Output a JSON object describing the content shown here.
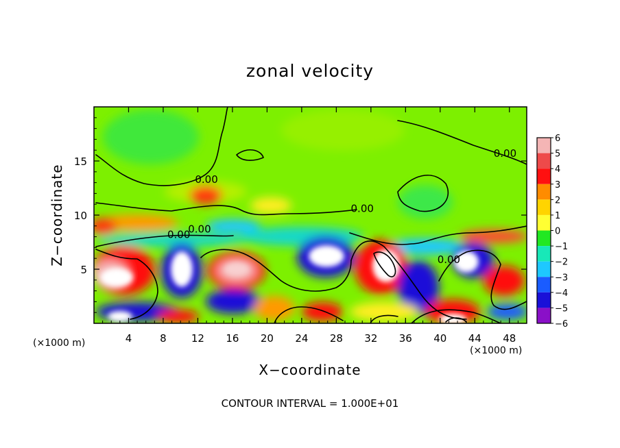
{
  "chart_data": {
    "type": "heatmap",
    "title": "zonal velocity",
    "xlabel": "X−coordinate",
    "ylabel": "Z−coordinate",
    "x_unit_left": "(×1000 m)",
    "x_unit_right": "(×1000 m)",
    "xlim": [
      0,
      50
    ],
    "ylim": [
      0,
      20
    ],
    "x_ticks": [
      4,
      8,
      12,
      16,
      20,
      24,
      28,
      32,
      36,
      40,
      44,
      48
    ],
    "y_ticks": [
      5,
      10,
      15
    ],
    "colorbar": {
      "ticks": [
        6,
        5,
        4,
        3,
        2,
        1,
        0,
        -1,
        -2,
        -3,
        -4,
        -5,
        -6
      ],
      "tick_labels": [
        "6",
        "5",
        "4",
        "3",
        "2",
        "1",
        "0",
        "−1",
        "−2",
        "−3",
        "−4",
        "−5",
        "−6"
      ],
      "colors": {
        "6": "#f4b5b5",
        "5": "#ee4a4a",
        "4": "#ff1010",
        "3": "#ff8c00",
        "2": "#ffd400",
        "1": "#ffff33",
        "0": "#7ff000",
        "-1": "#22e822",
        "-2": "#18e8b8",
        "-3": "#1ec8ff",
        "-4": "#1a5cff",
        "-5": "#1a10d8",
        "-6": "#8a10c8"
      }
    },
    "contour_labels": [
      {
        "text": "0.00",
        "x": 13.0,
        "y": 13.1
      },
      {
        "text": "0.00",
        "x": 47.5,
        "y": 15.5
      },
      {
        "text": "0.00",
        "x": 31.0,
        "y": 10.4
      },
      {
        "text": "0.00",
        "x": 9.8,
        "y": 8.0
      },
      {
        "text": "0.00",
        "x": 12.2,
        "y": 8.5
      },
      {
        "text": "0.00",
        "x": 41.0,
        "y": 5.7
      }
    ],
    "contour_interval_text": "CONTOUR INTERVAL = 1.000E+01"
  }
}
